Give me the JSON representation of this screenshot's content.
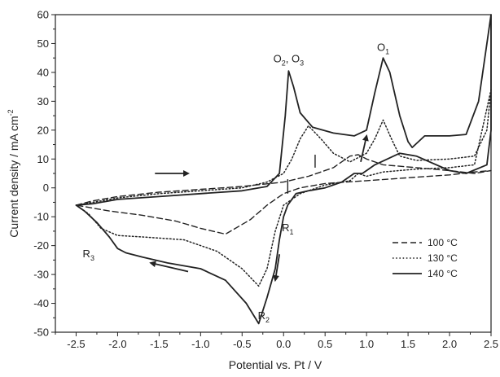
{
  "chart_data": {
    "type": "line",
    "title": "",
    "xlabel": "Potential vs. Pt / V",
    "ylabel": "Current density / mA cm-2",
    "ylabel_parts": {
      "main": "Current density / mA cm",
      "sup": "-2"
    },
    "xlim": [
      -2.75,
      2.5
    ],
    "ylim": [
      -50,
      60
    ],
    "xticks": [
      -2.5,
      -2.0,
      -1.5,
      -1.0,
      -0.5,
      0.0,
      0.5,
      1.0,
      1.5,
      2.0,
      2.5
    ],
    "xtick_labels": [
      "-2.5",
      "-2.0",
      "-1.5",
      "-1.0",
      "-0.5",
      "0.0",
      "0.5",
      "1.0",
      "1.5",
      "2.0",
      "2.5"
    ],
    "yticks": [
      -50,
      -40,
      -30,
      -20,
      -10,
      0,
      10,
      20,
      30,
      40,
      50,
      60
    ],
    "ytick_labels": [
      "-50",
      "-40",
      "-30",
      "-20",
      "-10",
      "0",
      "10",
      "20",
      "30",
      "40",
      "50",
      "60"
    ],
    "grid": false,
    "legend_position": "bottom-right",
    "series": [
      {
        "name": "100 °C",
        "dash": "dashed",
        "color": "#222222",
        "points": [
          [
            -2.5,
            -6
          ],
          [
            -2.3,
            -4.5
          ],
          [
            -2.0,
            -3
          ],
          [
            -1.5,
            -1.5
          ],
          [
            -1.0,
            -0.5
          ],
          [
            -0.5,
            0.5
          ],
          [
            0.0,
            2
          ],
          [
            0.3,
            4
          ],
          [
            0.6,
            7
          ],
          [
            0.8,
            11
          ],
          [
            0.9,
            11.5
          ],
          [
            1.0,
            10
          ],
          [
            1.2,
            8
          ],
          [
            1.6,
            7
          ],
          [
            2.0,
            6
          ],
          [
            2.3,
            5
          ],
          [
            2.5,
            6
          ],
          [
            2.3,
            5.5
          ],
          [
            2.0,
            4.5
          ],
          [
            1.5,
            3.5
          ],
          [
            1.0,
            2.5
          ],
          [
            0.5,
            1.5
          ],
          [
            0.2,
            0
          ],
          [
            0.0,
            -2
          ],
          [
            -0.2,
            -6
          ],
          [
            -0.4,
            -11
          ],
          [
            -0.7,
            -16
          ],
          [
            -1.0,
            -14
          ],
          [
            -1.3,
            -11.5
          ],
          [
            -1.7,
            -9.5
          ],
          [
            -2.1,
            -8
          ],
          [
            -2.5,
            -6
          ]
        ]
      },
      {
        "name": "130 °C",
        "dash": "dotted",
        "color": "#222222",
        "points": [
          [
            -2.5,
            -6
          ],
          [
            -2.3,
            -5
          ],
          [
            -2.0,
            -3.5
          ],
          [
            -1.5,
            -2
          ],
          [
            -1.0,
            -1
          ],
          [
            -0.5,
            0
          ],
          [
            -0.2,
            2
          ],
          [
            0.0,
            5
          ],
          [
            0.1,
            10
          ],
          [
            0.2,
            17
          ],
          [
            0.3,
            21.5
          ],
          [
            0.45,
            17
          ],
          [
            0.6,
            12
          ],
          [
            0.8,
            9
          ],
          [
            1.0,
            12
          ],
          [
            1.1,
            17
          ],
          [
            1.2,
            23.5
          ],
          [
            1.3,
            17
          ],
          [
            1.4,
            11
          ],
          [
            1.6,
            9.5
          ],
          [
            2.0,
            10
          ],
          [
            2.3,
            11
          ],
          [
            2.45,
            20
          ],
          [
            2.5,
            34
          ],
          [
            2.3,
            8
          ],
          [
            2.0,
            7
          ],
          [
            1.6,
            6.5
          ],
          [
            1.2,
            5.5
          ],
          [
            1.0,
            4
          ],
          [
            0.9,
            5
          ],
          [
            0.8,
            2.5
          ],
          [
            0.5,
            1
          ],
          [
            0.2,
            -2
          ],
          [
            0.0,
            -6
          ],
          [
            -0.1,
            -15
          ],
          [
            -0.2,
            -28
          ],
          [
            -0.3,
            -34
          ],
          [
            -0.5,
            -28
          ],
          [
            -0.8,
            -22
          ],
          [
            -1.2,
            -18
          ],
          [
            -1.7,
            -17
          ],
          [
            -2.0,
            -16.5
          ],
          [
            -2.2,
            -14
          ],
          [
            -2.35,
            -9
          ],
          [
            -2.5,
            -6
          ]
        ]
      },
      {
        "name": "140 °C",
        "dash": "solid",
        "color": "#222222",
        "points": [
          [
            -2.5,
            -6
          ],
          [
            -2.3,
            -5.5
          ],
          [
            -2.0,
            -4
          ],
          [
            -1.5,
            -3
          ],
          [
            -1.0,
            -2
          ],
          [
            -0.5,
            -1
          ],
          [
            -0.2,
            0.5
          ],
          [
            -0.05,
            5
          ],
          [
            0.02,
            25
          ],
          [
            0.06,
            40.5
          ],
          [
            0.12,
            35
          ],
          [
            0.2,
            26
          ],
          [
            0.35,
            21
          ],
          [
            0.6,
            19
          ],
          [
            0.85,
            18
          ],
          [
            1.0,
            20
          ],
          [
            1.1,
            33
          ],
          [
            1.2,
            45
          ],
          [
            1.28,
            40
          ],
          [
            1.4,
            25
          ],
          [
            1.5,
            16
          ],
          [
            1.55,
            14
          ],
          [
            1.7,
            18
          ],
          [
            2.0,
            18
          ],
          [
            2.2,
            18.5
          ],
          [
            2.35,
            30
          ],
          [
            2.45,
            50
          ],
          [
            2.5,
            60
          ],
          [
            2.5,
            20
          ],
          [
            2.45,
            8
          ],
          [
            2.2,
            5
          ],
          [
            2.0,
            6
          ],
          [
            1.6,
            11
          ],
          [
            1.4,
            12
          ],
          [
            1.1,
            8
          ],
          [
            1.0,
            6
          ],
          [
            0.95,
            5
          ],
          [
            0.85,
            5
          ],
          [
            0.7,
            2
          ],
          [
            0.5,
            0
          ],
          [
            0.3,
            -1
          ],
          [
            0.15,
            -2
          ],
          [
            0.05,
            -6
          ],
          [
            0.0,
            -10
          ],
          [
            -0.05,
            -18
          ],
          [
            -0.1,
            -28
          ],
          [
            -0.2,
            -38
          ],
          [
            -0.3,
            -47
          ],
          [
            -0.45,
            -40
          ],
          [
            -0.7,
            -32
          ],
          [
            -1.0,
            -28
          ],
          [
            -1.4,
            -26
          ],
          [
            -1.7,
            -24
          ],
          [
            -1.9,
            -22.5
          ],
          [
            -2.0,
            -21
          ],
          [
            -2.1,
            -17
          ],
          [
            -2.25,
            -12
          ],
          [
            -2.4,
            -8
          ],
          [
            -2.5,
            -6
          ]
        ]
      }
    ],
    "annotations": [
      {
        "id": "o2o3",
        "main": "O",
        "sub": "2",
        "rest": ", O",
        "sub2": "3",
        "x": 0.06,
        "y": 43.5
      },
      {
        "id": "o1",
        "main": "O",
        "sub": "1",
        "rest": "",
        "sub2": "",
        "x": 1.2,
        "y": 47.5
      },
      {
        "id": "r1",
        "main": "R",
        "sub": "1",
        "rest": "",
        "sub2": "",
        "x": 0.05,
        "y": -15
      },
      {
        "id": "r2",
        "main": "R",
        "sub": "2",
        "rest": "",
        "sub2": "",
        "x": -0.24,
        "y": -45.5
      },
      {
        "id": "r3",
        "main": "R",
        "sub": "3",
        "rest": "",
        "sub2": "",
        "x": -2.35,
        "y": -24
      }
    ],
    "arrows": [
      {
        "id": "arrow-right",
        "x1": -1.55,
        "y1": 5,
        "x2": -1.15,
        "y2": 5
      },
      {
        "id": "arrow-left",
        "x1": -1.15,
        "y1": -29,
        "x2": -1.6,
        "y2": -26
      },
      {
        "id": "arrow-up",
        "x1": 0.93,
        "y1": 9,
        "x2": 1.0,
        "y2": 18
      },
      {
        "id": "arrow-down",
        "x1": -0.05,
        "y1": -23,
        "x2": -0.1,
        "y2": -32
      }
    ],
    "marker_lines": [
      {
        "id": "vline-1",
        "x": 0.05,
        "y1": -2,
        "y2": 3
      },
      {
        "id": "vline-2",
        "x": 0.38,
        "y1": 7,
        "y2": 11.5
      }
    ]
  }
}
